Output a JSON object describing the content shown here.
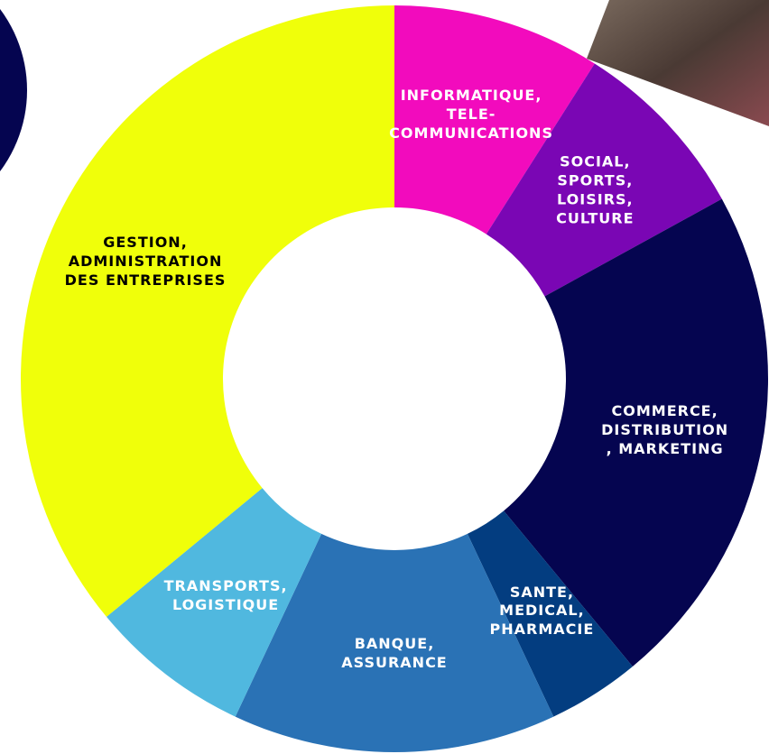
{
  "chart_data": {
    "type": "donut",
    "categories": [
      "INFORMATIQUE,\nTELE-\nCOMMUNICATIONS",
      "SOCIAL,\nSPORTS,\nLOISIRS,\nCULTURE",
      "COMMERCE,\nDISTRIBUTION\n, MARKETING",
      "SANTE,\nMEDICAL,\nPHARMACIE",
      "BANQUE,\nASSURANCE",
      "TRANSPORTS,\nLOGISTIQUE",
      "GESTION,\nADMINISTRATION\nDES ENTREPRISES"
    ],
    "values": [
      9,
      8,
      22,
      4,
      14,
      7,
      36
    ],
    "colors": [
      "#f20bbd",
      "#7a06b4",
      "#050550",
      "#033d80",
      "#2a72b5",
      "#50b8df",
      "#f0ff0a"
    ]
  }
}
